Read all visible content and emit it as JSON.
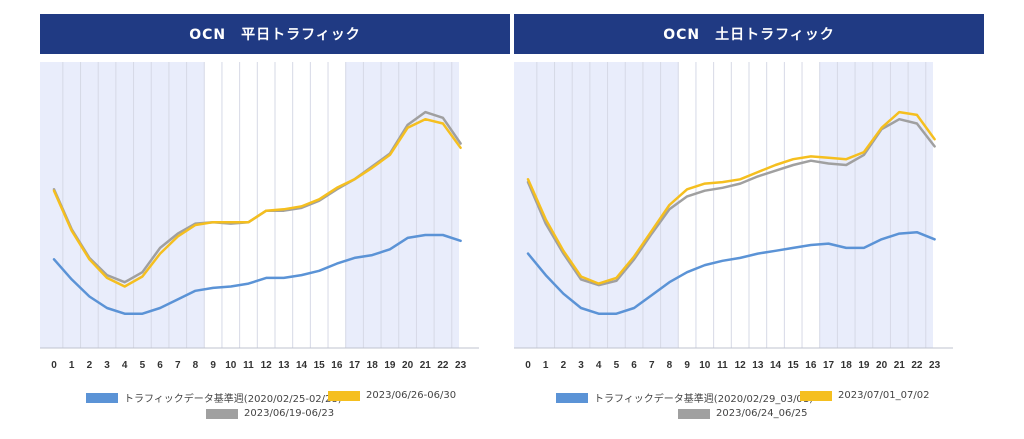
{
  "colors": {
    "header_bg": "#203a83",
    "shade": "#e9edfb",
    "grid": "#d6d9e6",
    "baseline": "#5b93d6",
    "yellow": "#f5bf1f",
    "gray": "#a0a0a0"
  },
  "chart_data": [
    {
      "type": "line",
      "title": "OCN　平日トラフィック",
      "xlabel": "",
      "ylabel": "",
      "categories": [
        "0",
        "1",
        "2",
        "3",
        "4",
        "5",
        "6",
        "7",
        "8",
        "9",
        "10",
        "11",
        "12",
        "13",
        "14",
        "15",
        "16",
        "17",
        "18",
        "19",
        "20",
        "21",
        "22",
        "23"
      ],
      "ylim": [
        0,
        100
      ],
      "y_axis_visible": false,
      "shaded_hours": [
        [
          0,
          8
        ],
        [
          17,
          23
        ]
      ],
      "legend": "bottom",
      "series": [
        {
          "name": "トラフィックデータ基準週(2020/02/25-02/28)",
          "color": "#5b93d6",
          "values": [
            31,
            24,
            18,
            14,
            12,
            12,
            14,
            17,
            20,
            21,
            21.5,
            22.5,
            24.5,
            24.5,
            25.5,
            27,
            29.5,
            31.5,
            32.5,
            34.5,
            38.5,
            39.5,
            39.5,
            37.5
          ]
        },
        {
          "name": "2023/06/26-06/30",
          "color": "#f5bf1f",
          "values": [
            55,
            41,
            31,
            24.5,
            21.5,
            25,
            33,
            39,
            43,
            44,
            44,
            44,
            48,
            48.5,
            49.5,
            52,
            56,
            59,
            63,
            67.5,
            77,
            80,
            78.5,
            70
          ]
        },
        {
          "name": "2023/06/19-06/23",
          "color": "#a0a0a0",
          "values": [
            55.5,
            41.5,
            31.5,
            25.5,
            23,
            26.5,
            35,
            40,
            43.5,
            44,
            43.5,
            44,
            48,
            48,
            49,
            51.5,
            55.5,
            59,
            63.5,
            68,
            78,
            82.5,
            80.5,
            71.5
          ]
        }
      ]
    },
    {
      "type": "line",
      "title": "OCN　土日トラフィック",
      "xlabel": "",
      "ylabel": "",
      "categories": [
        "0",
        "1",
        "2",
        "3",
        "4",
        "5",
        "6",
        "7",
        "8",
        "9",
        "10",
        "11",
        "12",
        "13",
        "14",
        "15",
        "16",
        "17",
        "18",
        "19",
        "20",
        "21",
        "22",
        "23"
      ],
      "ylim": [
        0,
        100
      ],
      "y_axis_visible": false,
      "shaded_hours": [
        [
          0,
          8
        ],
        [
          17,
          23
        ]
      ],
      "legend": "bottom",
      "series": [
        {
          "name": "トラフィックデータ基準週(2020/02/29_03/01)",
          "color": "#5b93d6",
          "values": [
            33,
            25.5,
            19,
            14,
            12,
            12,
            14,
            18.5,
            23,
            26.5,
            29,
            30.5,
            31.5,
            33,
            34,
            35,
            36,
            36.5,
            35,
            35,
            38,
            40,
            40.5,
            38
          ]
        },
        {
          "name": "2023/07/01_07/02",
          "color": "#f5bf1f",
          "values": [
            59,
            45,
            34,
            25,
            22.5,
            24.5,
            32,
            41,
            50,
            55.5,
            57.5,
            58,
            59,
            61.5,
            64,
            66,
            67,
            66.5,
            66,
            68.5,
            77,
            82.5,
            81.5,
            73
          ]
        },
        {
          "name": "2023/06/24_06/25",
          "color": "#a0a0a0",
          "values": [
            58,
            43.5,
            33,
            24,
            22,
            23.5,
            31,
            40,
            48.5,
            53,
            55,
            56,
            57.5,
            60,
            62,
            64,
            65.5,
            64.5,
            64,
            67.5,
            76.5,
            80,
            78.5,
            70.5
          ]
        }
      ]
    }
  ]
}
